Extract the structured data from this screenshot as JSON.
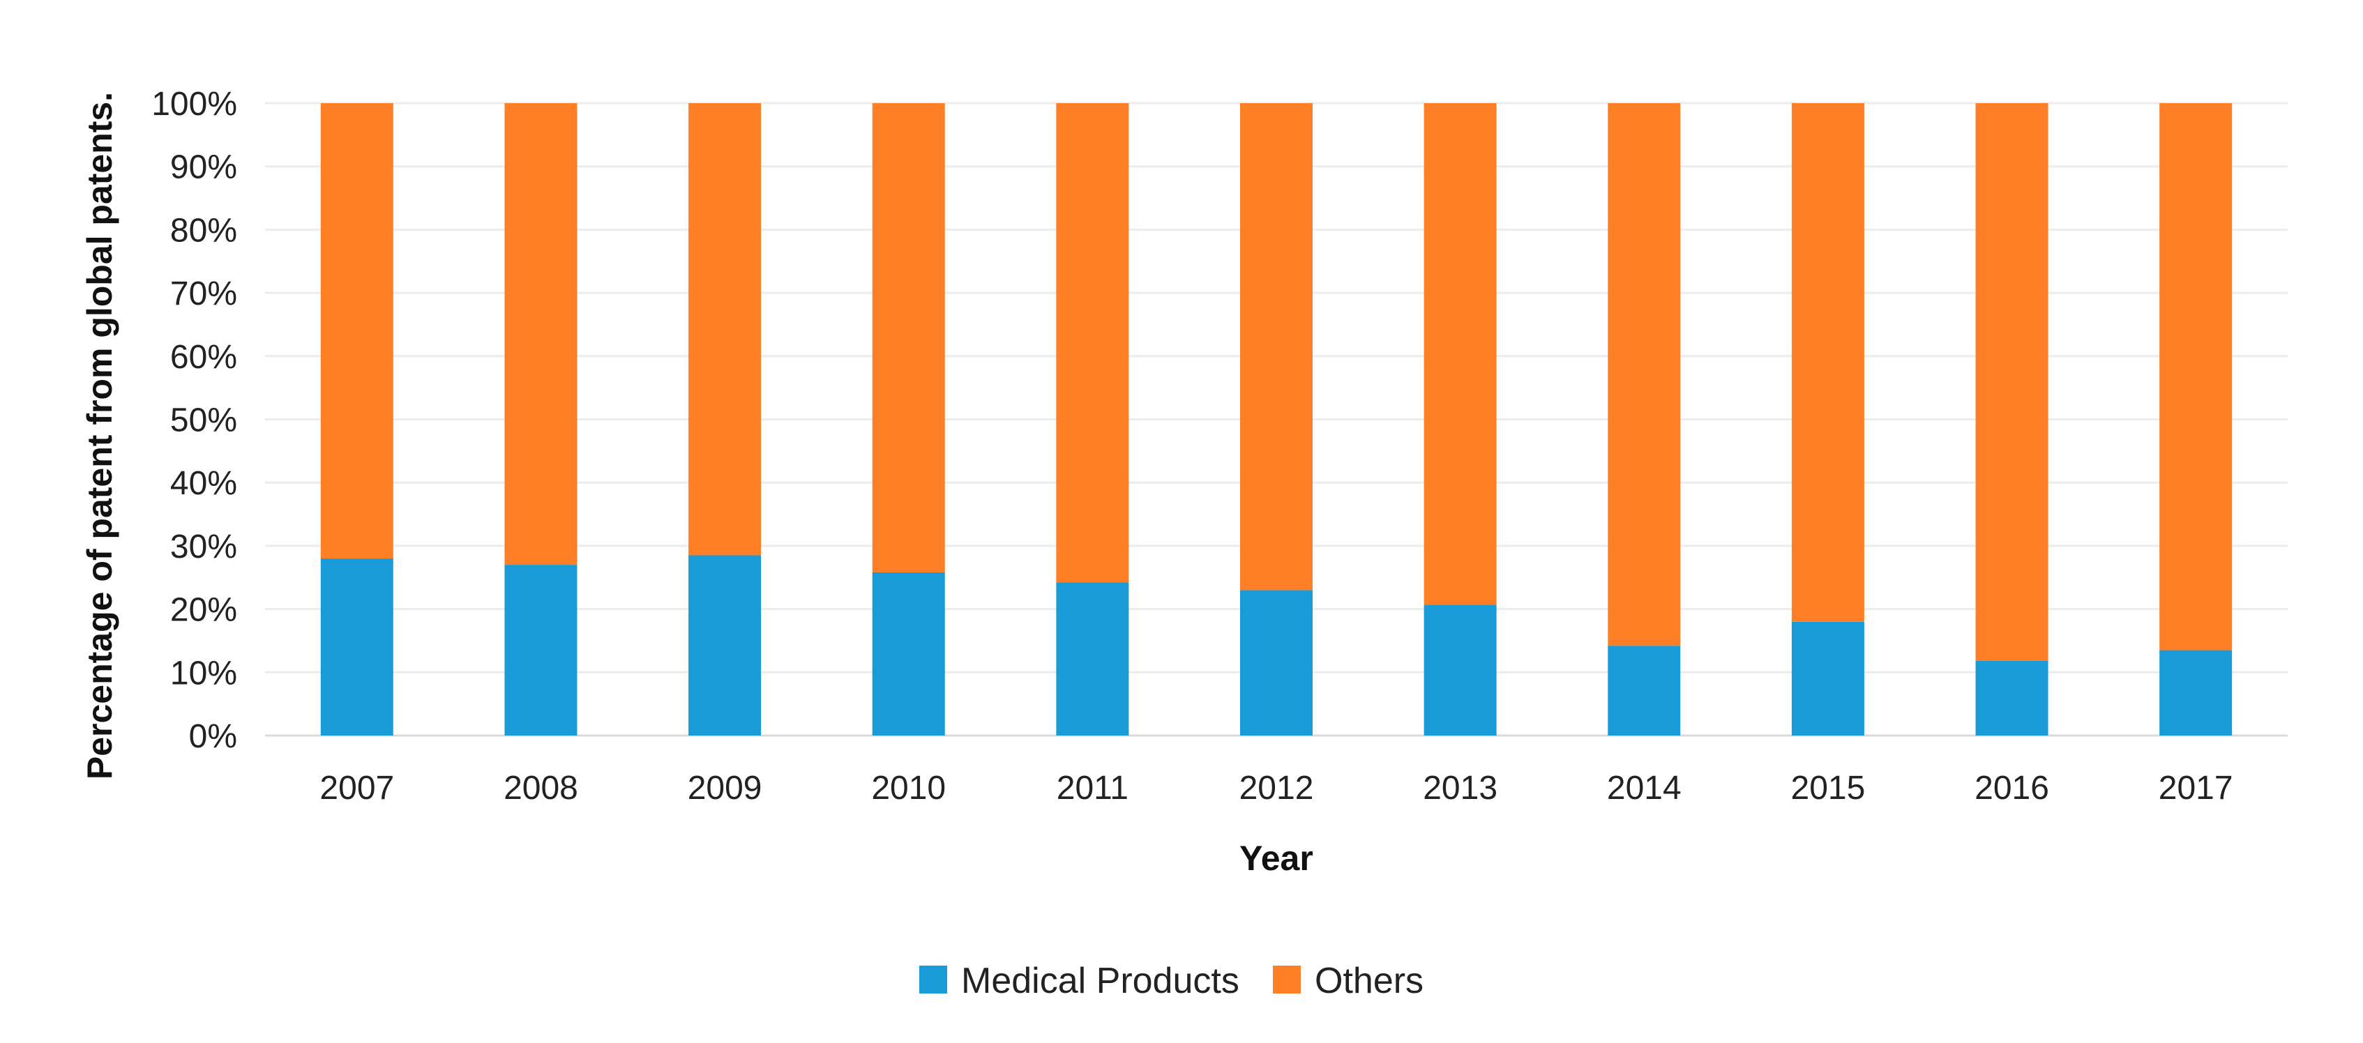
{
  "chart_data": {
    "type": "bar",
    "stacked": true,
    "title": "",
    "xlabel": "Year",
    "ylabel": "Percentage of patent from global patents.",
    "categories": [
      "2007",
      "2008",
      "2009",
      "2010",
      "2011",
      "2012",
      "2013",
      "2014",
      "2015",
      "2016",
      "2017"
    ],
    "series": [
      {
        "name": "Medical Products",
        "color": "#189BD7",
        "values": [
          28,
          27,
          28.5,
          25.8,
          24.2,
          23,
          20.7,
          14.2,
          18,
          11.8,
          13.5
        ]
      },
      {
        "name": "Others",
        "color": "#FF7F27",
        "values": [
          72,
          73,
          71.5,
          74.2,
          75.8,
          77,
          79.3,
          85.8,
          82,
          88.2,
          86.5
        ]
      }
    ],
    "ylim": [
      0,
      100
    ],
    "yticks": [
      "0%",
      "10%",
      "20%",
      "30%",
      "40%",
      "50%",
      "60%",
      "70%",
      "80%",
      "90%",
      "100%"
    ],
    "grid": true,
    "legend_position": "bottom-center"
  }
}
